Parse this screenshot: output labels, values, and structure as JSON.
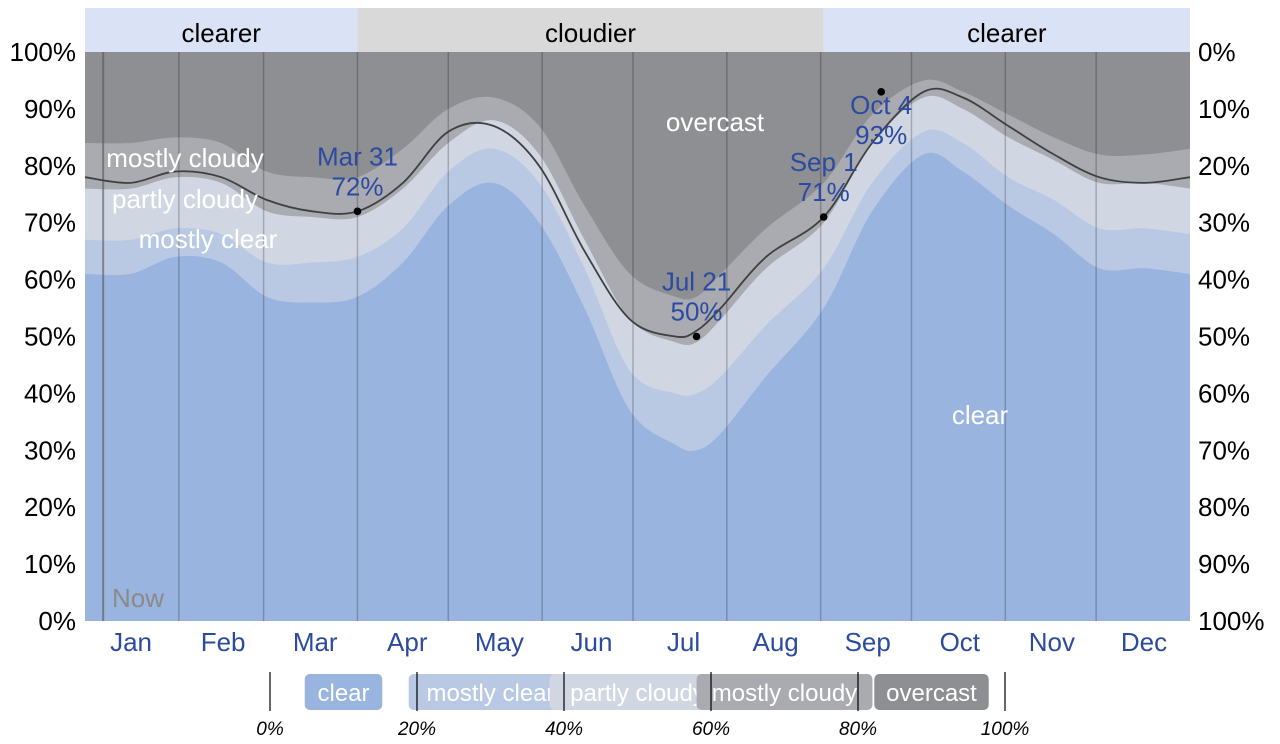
{
  "chart_data": {
    "type": "area",
    "title": "",
    "xlabel": "",
    "ylabel": "",
    "ylim": [
      0,
      100
    ],
    "y_ticks_left": [
      "0%",
      "10%",
      "20%",
      "30%",
      "40%",
      "50%",
      "60%",
      "70%",
      "80%",
      "90%",
      "100%"
    ],
    "y_ticks_right": [
      "100%",
      "90%",
      "80%",
      "70%",
      "60%",
      "50%",
      "40%",
      "30%",
      "20%",
      "10%",
      "0%"
    ],
    "months": [
      "Jan",
      "Feb",
      "Mar",
      "Apr",
      "May",
      "Jun",
      "Jul",
      "Aug",
      "Sep",
      "Oct",
      "Nov",
      "Dec"
    ],
    "season_bands": [
      {
        "label": "clearer",
        "start_day": 0,
        "end_day": 90
      },
      {
        "label": "cloudier",
        "start_day": 90,
        "end_day": 244
      },
      {
        "label": "clearer",
        "start_day": 244,
        "end_day": 365
      }
    ],
    "x_days": [
      0,
      15,
      30,
      45,
      60,
      75,
      90,
      105,
      120,
      135,
      150,
      165,
      180,
      195,
      202,
      210,
      225,
      244,
      260,
      277,
      290,
      305,
      320,
      335,
      350,
      365
    ],
    "series": [
      {
        "name": "clear",
        "values": [
          61,
          61,
          64,
          63,
          57,
          56,
          57,
          63,
          73,
          77,
          70,
          55,
          37,
          31,
          30,
          33,
          43,
          55,
          72,
          82,
          79,
          73,
          68,
          62,
          62,
          61
        ]
      },
      {
        "name": "mostly clear",
        "values": [
          67,
          67,
          69,
          68,
          63,
          63,
          64,
          69,
          79,
          83,
          77,
          62,
          44,
          40,
          40,
          43,
          52,
          62,
          77,
          86,
          84,
          78,
          74,
          69,
          69,
          68
        ]
      },
      {
        "name": "partly cloudy",
        "values": [
          76,
          76,
          78,
          77,
          72,
          71,
          71,
          76,
          84,
          88,
          82,
          67,
          53,
          49,
          49,
          53,
          62,
          70,
          84,
          92,
          90,
          85,
          81,
          77,
          77,
          76
        ]
      },
      {
        "name": "mostly cloudy",
        "values": [
          84,
          84,
          85,
          84,
          79,
          78,
          78,
          83,
          90,
          92,
          87,
          73,
          61,
          57,
          57,
          61,
          69,
          77,
          89,
          95,
          93,
          89,
          85,
          82,
          82,
          83
        ]
      }
    ],
    "threshold_line_values": [
      78,
      77,
      79,
      78,
      74,
      72,
      72,
      77,
      86,
      87,
      80,
      65,
      53,
      50,
      51,
      55,
      64,
      71,
      84,
      93,
      92,
      87,
      82,
      78,
      77,
      78
    ],
    "legend": [
      {
        "name": "clear",
        "color": "#99b4df"
      },
      {
        "name": "mostly clear",
        "color": "#b9c9e4"
      },
      {
        "name": "partly cloudy",
        "color": "#d0d7e3"
      },
      {
        "name": "mostly cloudy",
        "color": "#a9abb0"
      },
      {
        "name": "overcast",
        "color": "#8e8f93"
      }
    ],
    "legend_ticks": [
      "0%",
      "20%",
      "40%",
      "60%",
      "80%",
      "100%"
    ],
    "annotations": [
      {
        "date": "Mar 31",
        "value": "72%"
      },
      {
        "date": "Jul 21",
        "value": "50%"
      },
      {
        "date": "Sep 1",
        "value": "71%"
      },
      {
        "date": "Oct 4",
        "value": "93%"
      }
    ],
    "area_labels": [
      "mostly cloudy",
      "partly cloudy",
      "mostly clear",
      "overcast",
      "clear"
    ],
    "now_label": "Now",
    "colors": {
      "overcast": "#8e8f93",
      "mostly_cloudy": "#a9abb0",
      "partly_cloudy": "#d0d7e3",
      "mostly_clear": "#b9c9e4",
      "clear": "#99b4df",
      "clearer_band": "#d9e3f5",
      "cloudier_band": "#d9d9d9",
      "annotation_text": "#2b4ba0",
      "threshold_line": "#404040"
    }
  }
}
